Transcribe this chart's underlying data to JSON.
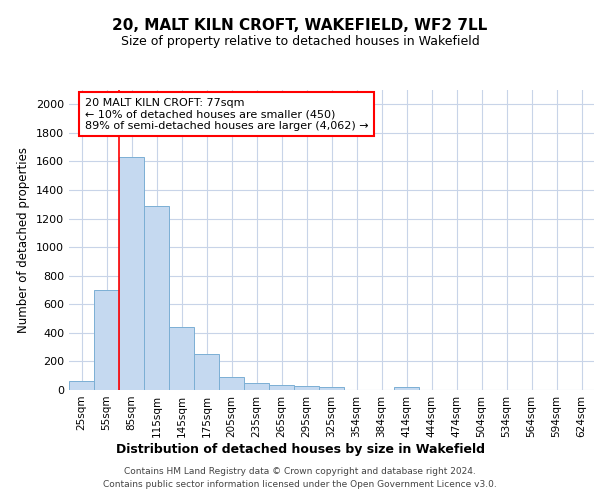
{
  "title": "20, MALT KILN CROFT, WAKEFIELD, WF2 7LL",
  "subtitle": "Size of property relative to detached houses in Wakefield",
  "xlabel": "Distribution of detached houses by size in Wakefield",
  "ylabel": "Number of detached properties",
  "bar_labels": [
    "25sqm",
    "55sqm",
    "85sqm",
    "115sqm",
    "145sqm",
    "175sqm",
    "205sqm",
    "235sqm",
    "265sqm",
    "295sqm",
    "325sqm",
    "354sqm",
    "384sqm",
    "414sqm",
    "444sqm",
    "474sqm",
    "504sqm",
    "534sqm",
    "564sqm",
    "594sqm",
    "624sqm"
  ],
  "bar_values": [
    65,
    700,
    1630,
    1285,
    440,
    255,
    90,
    52,
    38,
    28,
    20,
    0,
    0,
    18,
    0,
    0,
    0,
    0,
    0,
    0,
    0
  ],
  "bar_color": "#c5d9f0",
  "bar_edge_color": "#7bafd4",
  "annotation_title": "20 MALT KILN CROFT: 77sqm",
  "annotation_line1": "← 10% of detached houses are smaller (450)",
  "annotation_line2": "89% of semi-detached houses are larger (4,062) →",
  "ylim": [
    0,
    2100
  ],
  "yticks": [
    0,
    200,
    400,
    600,
    800,
    1000,
    1200,
    1400,
    1600,
    1800,
    2000
  ],
  "footer_line1": "Contains HM Land Registry data © Crown copyright and database right 2024.",
  "footer_line2": "Contains public sector information licensed under the Open Government Licence v3.0.",
  "bg_color": "#ffffff",
  "grid_color": "#c8d4e8"
}
